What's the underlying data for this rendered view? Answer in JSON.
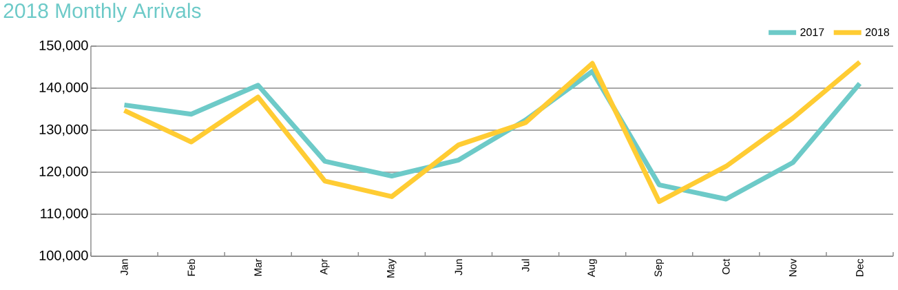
{
  "chart_data": {
    "type": "line",
    "title": "2018 Monthly Arrivals",
    "categories": [
      "Jan",
      "Feb",
      "Mar",
      "Apr",
      "May",
      "Jun",
      "Jul",
      "Aug",
      "Sep",
      "Oct",
      "Nov",
      "Dec"
    ],
    "series": [
      {
        "name": "2017",
        "color": "#6dcac8",
        "values": [
          136000,
          133800,
          140700,
          122600,
          119100,
          122900,
          132400,
          144000,
          117000,
          113600,
          122300,
          141100
        ]
      },
      {
        "name": "2018",
        "color": "#ffcc33",
        "values": [
          134700,
          127200,
          137900,
          117900,
          114200,
          126500,
          131800,
          145900,
          113000,
          121400,
          132900,
          146200
        ]
      }
    ],
    "ylim": [
      100000,
      150000
    ],
    "yticks": [
      {
        "value": 100000,
        "label": "100,000"
      },
      {
        "value": 110000,
        "label": "110,000"
      },
      {
        "value": 120000,
        "label": "120,000"
      },
      {
        "value": 130000,
        "label": "130,000"
      },
      {
        "value": 140000,
        "label": "140,000"
      },
      {
        "value": 150000,
        "label": "150,000"
      }
    ],
    "grid": "y",
    "legend": "top right",
    "marker": "none",
    "line_style": "solid"
  }
}
